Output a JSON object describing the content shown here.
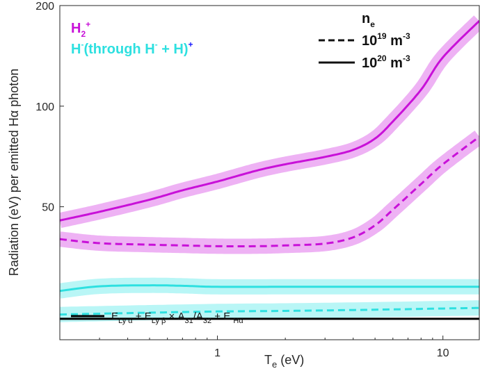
{
  "chart_data": {
    "type": "line",
    "xlabel_main": "T",
    "xlabel_sub": "e",
    "xlabel_unit": " (eV)",
    "ylabel": "Radiation (eV) per emitted Hα photon",
    "x_scale": "log",
    "y_scale": "log",
    "xlim": [
      0.2,
      14.5
    ],
    "ylim": [
      20,
      200
    ],
    "xticks": [
      {
        "value": 1,
        "label": "1"
      },
      {
        "value": 10,
        "label": "10"
      }
    ],
    "yticks": [
      {
        "value": 50,
        "label": "50"
      },
      {
        "value": 100,
        "label": "100"
      },
      {
        "value": 200,
        "label": "200"
      }
    ],
    "grid": false,
    "legend_species": [
      {
        "main": "H",
        "sub": "2",
        "sup": "+",
        "color": "#c811d8"
      },
      {
        "main": "H",
        "sup": "-",
        "rest1": "(through H",
        "sup2": "-",
        "rest2": " + H)",
        "sup3": "+",
        "color": "#2ee0e0",
        "sup3_color": "#1a1aff"
      }
    ],
    "legend_density": {
      "title_main": "n",
      "title_sub": "e",
      "entries": [
        {
          "style": "dashed",
          "base": "10",
          "exp": "19",
          "unit": " m",
          "unit_exp": "-3"
        },
        {
          "style": "solid",
          "base": "10",
          "exp": "20",
          "unit": " m",
          "unit_exp": "-3"
        }
      ]
    },
    "series": [
      {
        "species": "H2+",
        "density": "1e20",
        "style": "solid",
        "color": "#c811d8",
        "band_color": "#eeb2f4",
        "x": [
          0.2,
          0.3,
          0.5,
          0.7,
          1.0,
          1.5,
          2.0,
          3.0,
          4.0,
          5.0,
          6.0,
          8.0,
          10.0,
          14.5
        ],
        "y": [
          45.5,
          48.3,
          52.5,
          56.0,
          59.5,
          64.2,
          67.0,
          70.5,
          74.0,
          80.0,
          90.0,
          112.0,
          140.0,
          180.0
        ]
      },
      {
        "species": "H2+",
        "density": "1e19",
        "style": "dashed",
        "color": "#c811d8",
        "band_color": "#eeb2f4",
        "x": [
          0.2,
          0.3,
          0.5,
          0.7,
          1.0,
          1.5,
          2.0,
          3.0,
          4.0,
          5.0,
          6.0,
          8.0,
          10.0,
          14.5
        ],
        "y": [
          40.0,
          38.9,
          38.5,
          38.3,
          38.1,
          38.1,
          38.3,
          38.8,
          40.5,
          44.0,
          49.0,
          58.5,
          67.0,
          81.0
        ]
      },
      {
        "species": "H-",
        "density": "1e20",
        "style": "solid",
        "color": "#2ee0e0",
        "band_color": "#b9f6f6",
        "x": [
          0.2,
          0.3,
          0.5,
          0.7,
          1.0,
          2.0,
          5.0,
          10.0,
          14.5
        ],
        "y": [
          28.0,
          28.9,
          29.1,
          29.0,
          28.8,
          28.8,
          28.8,
          28.8,
          28.8
        ]
      },
      {
        "species": "H-",
        "density": "1e19",
        "style": "dashed",
        "color": "#2ee0e0",
        "band_color": "#b9f6f6",
        "x": [
          0.2,
          0.5,
          1.0,
          2.0,
          5.0,
          10.0,
          14.5
        ],
        "y": [
          23.8,
          24.1,
          24.3,
          24.4,
          24.6,
          24.8,
          24.9
        ]
      },
      {
        "species": "baseline",
        "style": "solid",
        "color": "#000000",
        "x": [
          0.2,
          14.5
        ],
        "y": [
          23.1,
          23.1
        ]
      }
    ],
    "baseline_legend": {
      "t1": "E",
      "s1": "Ly α",
      "t2": " + E",
      "s2": "Ly β",
      "t3": " × A",
      "s3": "31",
      "t4": "/A",
      "s4": "32",
      "t5": " + E ",
      "s5": "Hα"
    }
  }
}
